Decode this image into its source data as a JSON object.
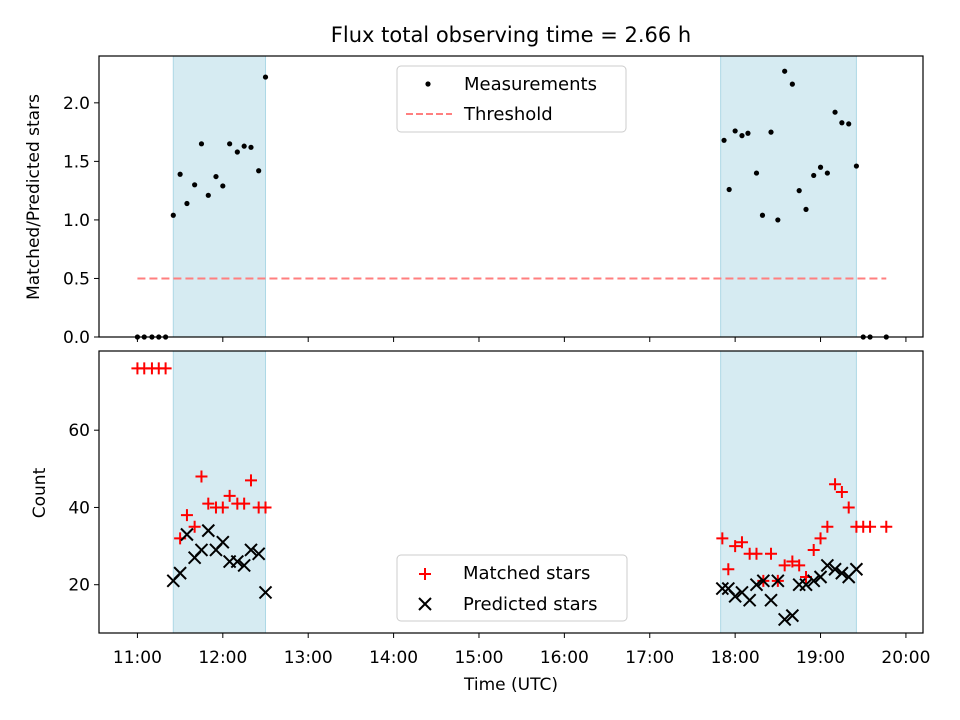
{
  "title": "Flux total observing time = 2.66 h",
  "colors": {
    "shade": "#add8e6",
    "measurement": "#000000",
    "threshold": "#ff7f7f",
    "matched": "#ff0000",
    "predicted": "#000000"
  },
  "chart_data": [
    {
      "type": "scatter",
      "ylabel": "Matched/Predicted stars",
      "ylim": [
        0,
        2.4
      ],
      "yticks": [
        0.0,
        0.5,
        1.0,
        1.5,
        2.0
      ],
      "ytick_labels": [
        "0.0",
        "0.5",
        "1.0",
        "1.5",
        "2.0"
      ],
      "xlim": [
        10.55,
        20.2
      ],
      "shaded_intervals": [
        [
          11.42,
          12.5
        ],
        [
          17.83,
          19.42
        ]
      ],
      "legend": {
        "placement": "top-center",
        "entries": [
          "Measurements",
          "Threshold"
        ]
      },
      "series": [
        {
          "name": "Measurements",
          "marker": "dot",
          "x": [
            11.0,
            11.08,
            11.17,
            11.25,
            11.33,
            11.42,
            11.5,
            11.58,
            11.67,
            11.75,
            11.83,
            11.92,
            12.0,
            12.08,
            12.17,
            12.25,
            12.33,
            12.42,
            12.5,
            17.87,
            17.93,
            18.0,
            18.08,
            18.15,
            18.25,
            18.32,
            18.42,
            18.5,
            18.58,
            18.67,
            18.75,
            18.83,
            18.92,
            19.0,
            19.08,
            19.17,
            19.25,
            19.33,
            19.42,
            19.5,
            19.58,
            19.77
          ],
          "y": [
            0,
            0,
            0,
            0,
            0,
            1.04,
            1.39,
            1.14,
            1.3,
            1.65,
            1.21,
            1.37,
            1.29,
            1.65,
            1.58,
            1.63,
            1.62,
            1.42,
            2.22,
            1.68,
            1.26,
            1.76,
            1.72,
            1.74,
            1.4,
            1.04,
            1.75,
            1.0,
            2.27,
            2.16,
            1.25,
            1.09,
            1.38,
            1.45,
            1.4,
            1.92,
            1.83,
            1.82,
            1.46,
            0,
            0,
            0
          ]
        },
        {
          "name": "Threshold",
          "style": "dashed-line",
          "x": [
            11.0,
            19.77
          ],
          "y": [
            0.5,
            0.5
          ]
        }
      ]
    },
    {
      "type": "scatter",
      "xlabel": "Time (UTC)",
      "ylabel": "Count",
      "ylim": [
        7.5,
        80.5
      ],
      "yticks": [
        20,
        40,
        60
      ],
      "ytick_labels": [
        "20",
        "40",
        "60"
      ],
      "xlim": [
        10.55,
        20.2
      ],
      "xticks": [
        11,
        12,
        13,
        14,
        15,
        16,
        17,
        18,
        19,
        20
      ],
      "xtick_labels": [
        "11:00",
        "12:00",
        "13:00",
        "14:00",
        "15:00",
        "16:00",
        "17:00",
        "18:00",
        "19:00",
        "20:00"
      ],
      "shaded_intervals": [
        [
          11.42,
          12.5
        ],
        [
          17.83,
          19.42
        ]
      ],
      "legend": {
        "placement": "bottom-center",
        "entries": [
          "Matched stars",
          "Predicted stars"
        ]
      },
      "series": [
        {
          "name": "Matched stars",
          "marker": "plus",
          "x": [
            11.0,
            11.08,
            11.17,
            11.25,
            11.33,
            11.5,
            11.58,
            11.67,
            11.75,
            11.83,
            11.92,
            12.0,
            12.08,
            12.17,
            12.25,
            12.33,
            12.42,
            12.5,
            17.85,
            17.92,
            18.0,
            18.08,
            18.17,
            18.25,
            18.33,
            18.42,
            18.5,
            18.58,
            18.67,
            18.75,
            18.83,
            18.92,
            19.0,
            19.08,
            19.17,
            19.25,
            19.33,
            19.42,
            19.5,
            19.58,
            19.77
          ],
          "y": [
            76,
            76,
            76,
            76,
            76,
            32,
            38,
            35,
            48,
            41,
            40,
            40,
            43,
            41,
            41,
            47,
            40,
            40,
            32,
            24,
            30,
            31,
            28,
            28,
            21,
            28,
            21,
            25,
            26,
            25,
            22,
            29,
            32,
            35,
            46,
            44,
            40,
            35,
            35,
            35,
            35
          ]
        },
        {
          "name": "Predicted stars",
          "marker": "x",
          "x": [
            11.42,
            11.5,
            11.58,
            11.67,
            11.75,
            11.83,
            11.92,
            12.0,
            12.08,
            12.17,
            12.25,
            12.33,
            12.42,
            12.5,
            17.85,
            17.92,
            18.0,
            18.08,
            18.17,
            18.25,
            18.33,
            18.42,
            18.5,
            18.58,
            18.67,
            18.75,
            18.83,
            18.92,
            19.0,
            19.08,
            19.17,
            19.25,
            19.33,
            19.42
          ],
          "y": [
            21,
            23,
            33,
            27,
            29,
            34,
            29,
            31,
            26,
            26,
            25,
            29,
            28,
            18,
            19,
            19,
            17,
            18,
            16,
            20,
            21,
            16,
            21,
            11,
            12,
            20,
            20,
            21,
            22,
            25,
            24,
            23,
            22,
            24
          ]
        }
      ]
    }
  ]
}
